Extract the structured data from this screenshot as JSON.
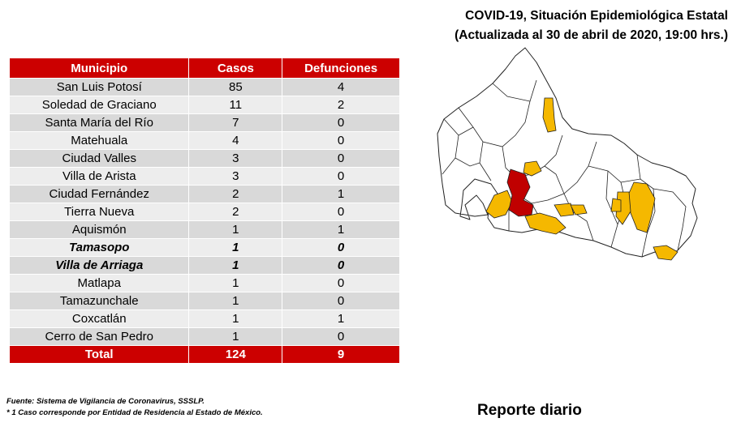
{
  "header": {
    "title": "COVID-19, Situación Epidemiológica Estatal",
    "subtitle": "(Actualizada al 30 de abril de 2020, 19:00 hrs.)"
  },
  "table": {
    "columns": [
      "Municipio",
      "Casos",
      "Defunciones"
    ],
    "rows": [
      {
        "municipio": "San Luis Potosí",
        "casos": "85",
        "defunciones": "4"
      },
      {
        "municipio": "Soledad de Graciano",
        "casos": "11",
        "defunciones": "2"
      },
      {
        "municipio": "Santa María del Río",
        "casos": "7",
        "defunciones": "0"
      },
      {
        "municipio": "Matehuala",
        "casos": "4",
        "defunciones": "0"
      },
      {
        "municipio": "Ciudad Valles",
        "casos": "3",
        "defunciones": "0"
      },
      {
        "municipio": "Villa de Arista",
        "casos": "3",
        "defunciones": "0"
      },
      {
        "municipio": "Ciudad Fernández",
        "casos": "2",
        "defunciones": "1"
      },
      {
        "municipio": "Tierra Nueva",
        "casos": "2",
        "defunciones": "0"
      },
      {
        "municipio": "Aquismón",
        "casos": "1",
        "defunciones": "1"
      },
      {
        "municipio": "Tamasopo",
        "casos": "1",
        "defunciones": "0"
      },
      {
        "municipio": "Villa de Arriaga",
        "casos": "1",
        "defunciones": "0"
      },
      {
        "municipio": "Matlapa",
        "casos": "1",
        "defunciones": "0"
      },
      {
        "municipio": "Tamazunchale",
        "casos": "1",
        "defunciones": "0"
      },
      {
        "municipio": "Coxcatlán",
        "casos": "1",
        "defunciones": "1"
      },
      {
        "municipio": "Cerro de San Pedro",
        "casos": "1",
        "defunciones": "0"
      }
    ],
    "total": {
      "label": "Total",
      "casos": "124",
      "defunciones": "9"
    }
  },
  "footnote": {
    "source": "Fuente: Sistema de Vigilancia de Coronavirus, SSSLP.",
    "note": "* 1 Caso corresponde por Entidad de Residencia al Estado de México."
  },
  "report_label": "Reporte diario",
  "colors": {
    "header_red": "#cc0000",
    "map_red": "#c00000",
    "map_yellow": "#f5b800",
    "row_dark": "#d9d9d9",
    "row_light": "#ededed"
  }
}
